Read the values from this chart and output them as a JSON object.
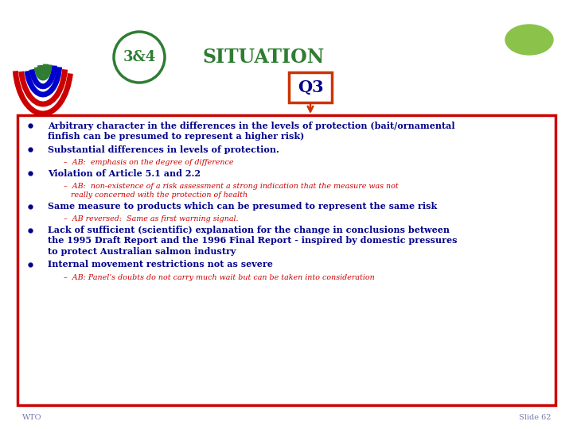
{
  "title": "SITUATION",
  "badge": "3&4",
  "q_label": "Q3",
  "bg_color": "#ffffff",
  "border_color": "#cc0000",
  "badge_color": "#2e7d32",
  "q_box_color": "#cc3300",
  "q_text_color": "#00008b",
  "title_color": "#2e7d32",
  "bullet_color": "#00008b",
  "sub_color": "#cc0000",
  "footer_color": "#7777aa",
  "bullets": [
    {
      "type": "bullet",
      "lines": [
        "Arbitrary character in the differences in the levels of protection (bait/ornamental",
        "finfish can be presumed to represent a higher risk)"
      ]
    },
    {
      "type": "bullet",
      "lines": [
        "Substantial differences in levels of protection."
      ]
    },
    {
      "type": "sub",
      "lines": [
        "–  AB:  emphasis on the degree of difference"
      ]
    },
    {
      "type": "bullet",
      "lines": [
        "Violation of Article 5.1 and 2.2"
      ]
    },
    {
      "type": "sub",
      "lines": [
        "–  AB:  non-existence of a risk assessment a strong indication that the measure was not",
        "   really concerned with the protection of health"
      ]
    },
    {
      "type": "bullet",
      "lines": [
        "Same measure to products which can be presumed to represent the same risk"
      ]
    },
    {
      "type": "sub",
      "lines": [
        "–  AB reversed:  Same as first warning signal."
      ]
    },
    {
      "type": "bullet",
      "lines": [
        "Lack of sufficient (scientific) explanation for the change in conclusions between",
        "the 1995 Draft Report and the 1996 Final Report - inspired by domestic pressures",
        "to protect Australian salmon industry"
      ]
    },
    {
      "type": "bullet",
      "lines": [
        "Internal movement restrictions not as severe"
      ]
    },
    {
      "type": "sub",
      "lines": [
        "–  AB: Panel’s doubts do not carry much wait but can be taken into consideration"
      ]
    }
  ],
  "footer_left": "WTO",
  "footer_right": "Slide 62"
}
